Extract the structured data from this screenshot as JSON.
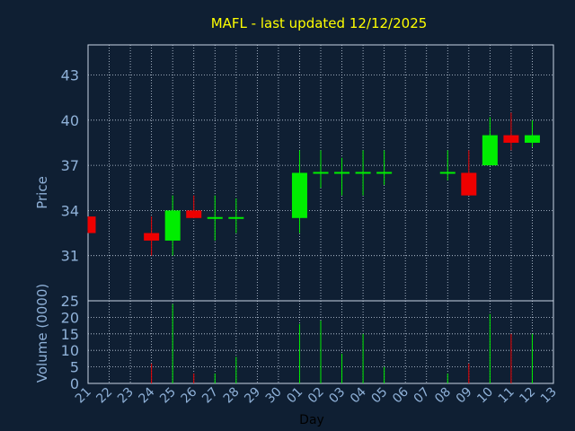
{
  "chart_data": {
    "type": "candlestick",
    "title": "MAFL - last updated 12/12/2025",
    "xlabel": "Day",
    "price_panel": {
      "ylabel": "Price",
      "ylim": [
        28,
        45
      ],
      "yticks": [
        31,
        34,
        37,
        40,
        43
      ],
      "grid": true
    },
    "volume_panel": {
      "ylabel": "Volume (0000)",
      "ylim": [
        0,
        25
      ],
      "yticks": [
        0,
        5,
        10,
        15,
        20,
        25
      ],
      "grid": true
    },
    "x_tick_labels": [
      "21",
      "22",
      "23",
      "24",
      "25",
      "26",
      "27",
      "28",
      "29",
      "30",
      "01",
      "02",
      "03",
      "04",
      "05",
      "06",
      "07",
      "08",
      "09",
      "10",
      "11",
      "12",
      "13"
    ],
    "candles": [
      {
        "day": "21",
        "open": 33.6,
        "high": 33.6,
        "low": 32.5,
        "close": 32.5,
        "volume": 0
      },
      {
        "day": "24",
        "open": 32.5,
        "high": 33.6,
        "low": 31.0,
        "close": 32.0,
        "volume": 6
      },
      {
        "day": "25",
        "open": 32.0,
        "high": 35.0,
        "low": 31.0,
        "close": 34.0,
        "volume": 24
      },
      {
        "day": "26",
        "open": 34.0,
        "high": 35.0,
        "low": 33.5,
        "close": 33.5,
        "volume": 3
      },
      {
        "day": "27",
        "open": 33.5,
        "high": 35.0,
        "low": 32.0,
        "close": 33.5,
        "volume": 3
      },
      {
        "day": "28",
        "open": 33.5,
        "high": 34.8,
        "low": 32.5,
        "close": 33.5,
        "volume": 8
      },
      {
        "day": "01",
        "open": 33.5,
        "high": 38.0,
        "low": 32.5,
        "close": 36.5,
        "volume": 18
      },
      {
        "day": "02",
        "open": 36.5,
        "high": 38.0,
        "low": 35.5,
        "close": 36.5,
        "volume": 19
      },
      {
        "day": "03",
        "open": 36.5,
        "high": 37.5,
        "low": 35.0,
        "close": 36.5,
        "volume": 9
      },
      {
        "day": "04",
        "open": 36.5,
        "high": 38.0,
        "low": 35.0,
        "close": 36.5,
        "volume": 15
      },
      {
        "day": "05",
        "open": 36.5,
        "high": 38.0,
        "low": 35.7,
        "close": 36.5,
        "volume": 5
      },
      {
        "day": "08",
        "open": 36.5,
        "high": 38.0,
        "low": 36.0,
        "close": 36.5,
        "volume": 3
      },
      {
        "day": "09",
        "open": 36.5,
        "high": 38.0,
        "low": 35.0,
        "close": 35.0,
        "volume": 6
      },
      {
        "day": "10",
        "open": 37.0,
        "high": 40.2,
        "low": 37.0,
        "close": 39.0,
        "volume": 21
      },
      {
        "day": "11",
        "open": 39.0,
        "high": 40.5,
        "low": 38.0,
        "close": 38.5,
        "volume": 15
      },
      {
        "day": "12",
        "open": 38.5,
        "high": 40.0,
        "low": 38.2,
        "close": 39.0,
        "volume": 15
      }
    ],
    "colors": {
      "background": "#0f1f33",
      "grid": "#c8d4e4",
      "up": "#00ee00",
      "down": "#ee0000",
      "title": "#ffff00",
      "axis_text": "#8fb1d8"
    }
  }
}
